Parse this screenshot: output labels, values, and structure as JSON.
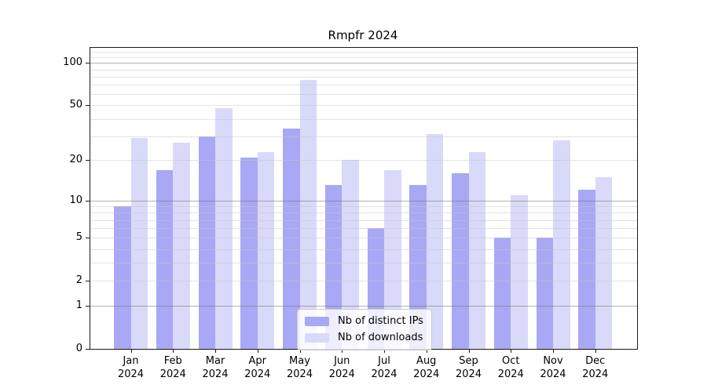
{
  "chart_data": {
    "type": "bar",
    "title": "Rmpfr 2024",
    "categories": [
      "Jan",
      "Feb",
      "Mar",
      "Apr",
      "May",
      "Jun",
      "Jul",
      "Aug",
      "Sep",
      "Oct",
      "Nov",
      "Dec"
    ],
    "category_year": "2024",
    "series": [
      {
        "name": "Nb of distinct IPs",
        "color": "#a8a8f4",
        "values": [
          9,
          17,
          30,
          21,
          34,
          13,
          6,
          13,
          16,
          5,
          5,
          12
        ]
      },
      {
        "name": "Nb of downloads",
        "color": "#d9d9f9",
        "values": [
          29,
          27,
          48,
          23,
          76,
          20,
          17,
          31,
          23,
          11,
          28,
          15
        ]
      }
    ],
    "xlabel": "",
    "ylabel": "",
    "yscale": "log1p",
    "ylim": [
      0,
      128
    ],
    "yticks": [
      0,
      1,
      2,
      5,
      10,
      20,
      50,
      100
    ],
    "grid": {
      "orientation": "horizontal",
      "major_values": [
        1,
        10,
        100
      ],
      "minor_values": [
        2,
        3,
        4,
        5,
        6,
        7,
        8,
        9,
        20,
        30,
        40,
        50,
        60,
        70,
        80,
        90,
        110,
        120
      ]
    },
    "legend": {
      "position": "lower center"
    },
    "colors": {
      "axis": "#1a1a1a",
      "grid_major": "#737373",
      "grid_minor": "#c8c8c8",
      "legend_border": "#cccccc",
      "background": "#ffffff"
    }
  }
}
